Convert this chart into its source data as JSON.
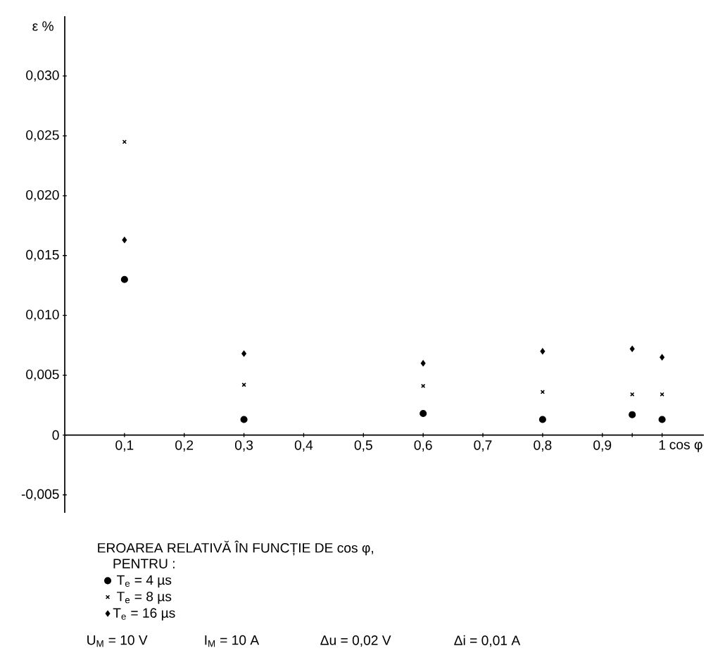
{
  "chart_data": {
    "type": "scatter",
    "title": "EROAREA RELATIVĂ ÎN FUNCȚIE DE cos φ,",
    "legend_title": "PENTRU :",
    "xlabel": "cos φ",
    "ylabel": "ε %",
    "x": [
      0.1,
      0.3,
      0.6,
      0.8,
      0.95,
      1
    ],
    "series": [
      {
        "name": "T$_{e}$ = 4 µs",
        "color": "#000000",
        "marker": "circle",
        "values": [
          0.013,
          0.0013,
          0.0018,
          0.0013,
          0.0017,
          0.0013
        ]
      },
      {
        "name": "T$_{e}$ = 8 µs",
        "color": "#000000",
        "marker": "cross",
        "values": [
          0.0245,
          0.0042,
          0.0041,
          0.0036,
          0.0034,
          0.0034
        ]
      },
      {
        "name": "T$_{e}$ = 16 µs",
        "color": "#000000",
        "marker": "diamond",
        "values": [
          0.0163,
          0.0068,
          0.006,
          0.007,
          0.0072,
          0.0065
        ]
      }
    ],
    "xlim": [
      0,
      1.07
    ],
    "ylim": [
      -0.0065,
      0.035
    ],
    "xticks": [
      {
        "value": 0.1,
        "label": "0,1"
      },
      {
        "value": 0.2,
        "label": "0,2"
      },
      {
        "value": 0.3,
        "label": "0,3"
      },
      {
        "value": 0.4,
        "label": "0,4"
      },
      {
        "value": 0.5,
        "label": "0,5"
      },
      {
        "value": 0.6,
        "label": "0,6"
      },
      {
        "value": 0.7,
        "label": "0,7"
      },
      {
        "value": 0.8,
        "label": "0,8"
      },
      {
        "value": 0.9,
        "label": "0,9"
      },
      {
        "value": 0.95,
        "label": null
      },
      1
    ],
    "yticks": [
      {
        "value": -0.005,
        "label": "-0,005"
      },
      0,
      {
        "value": 0.005,
        "label": "0,005"
      },
      {
        "value": 0.01,
        "label": "0,010"
      },
      {
        "value": 0.015,
        "label": "0,015"
      },
      {
        "value": 0.02,
        "label": "0,020"
      },
      {
        "value": 0.025,
        "label": "0,025"
      },
      {
        "value": 0.03,
        "label": "0,030"
      }
    ],
    "legend": "bottom",
    "annotations": [
      "U$_{M}$ = 10 V",
      "I$_{M}$ = 10 A",
      "Δu = 0,02 V",
      "Δi = 0,01 A"
    ]
  }
}
